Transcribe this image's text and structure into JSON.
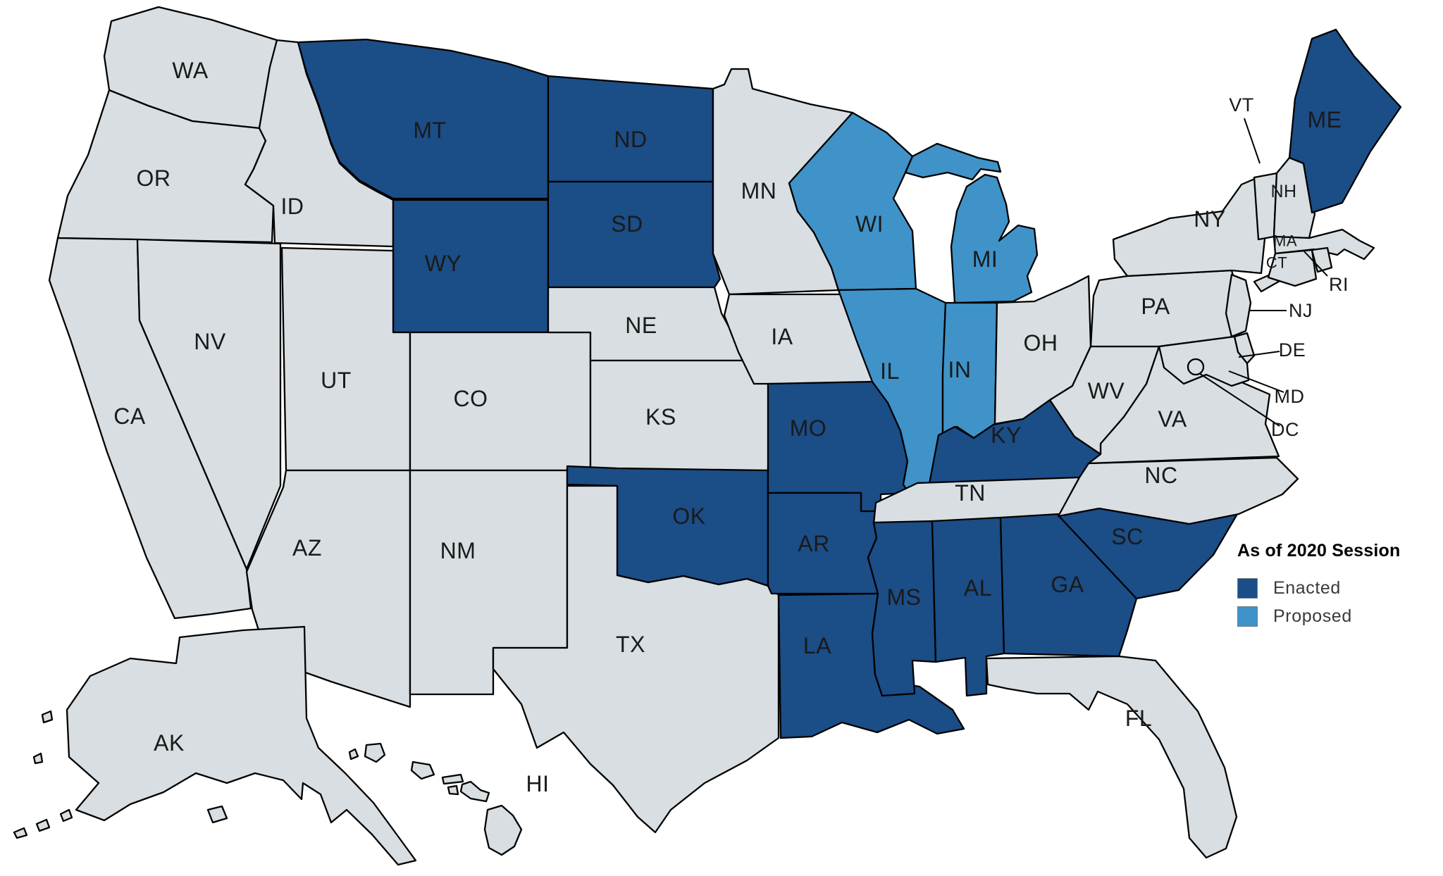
{
  "legend": {
    "title": "As of 2020 Session",
    "items": [
      {
        "id": "enacted",
        "label": "Enacted"
      },
      {
        "id": "proposed",
        "label": "Proposed"
      }
    ]
  },
  "colors": {
    "enacted": "#1B4D87",
    "proposed": "#3F93C8",
    "default": "#D8DEE1",
    "border": "#000000",
    "background": "#FFFFFF",
    "label_text": "#1A1A1A",
    "legend_text": "#3A3A3A"
  },
  "map": {
    "states": [
      {
        "abbr": "WA",
        "status": "default"
      },
      {
        "abbr": "OR",
        "status": "default"
      },
      {
        "abbr": "CA",
        "status": "default"
      },
      {
        "abbr": "NV",
        "status": "default"
      },
      {
        "abbr": "ID",
        "status": "default"
      },
      {
        "abbr": "MT",
        "status": "enacted"
      },
      {
        "abbr": "WY",
        "status": "enacted"
      },
      {
        "abbr": "UT",
        "status": "default"
      },
      {
        "abbr": "CO",
        "status": "default"
      },
      {
        "abbr": "AZ",
        "status": "default"
      },
      {
        "abbr": "NM",
        "status": "default"
      },
      {
        "abbr": "ND",
        "status": "enacted"
      },
      {
        "abbr": "SD",
        "status": "enacted"
      },
      {
        "abbr": "NE",
        "status": "default"
      },
      {
        "abbr": "KS",
        "status": "default"
      },
      {
        "abbr": "OK",
        "status": "enacted"
      },
      {
        "abbr": "TX",
        "status": "default"
      },
      {
        "abbr": "MN",
        "status": "default"
      },
      {
        "abbr": "IA",
        "status": "default"
      },
      {
        "abbr": "MO",
        "status": "enacted"
      },
      {
        "abbr": "AR",
        "status": "enacted"
      },
      {
        "abbr": "LA",
        "status": "enacted"
      },
      {
        "abbr": "WI",
        "status": "proposed"
      },
      {
        "abbr": "IL",
        "status": "proposed"
      },
      {
        "abbr": "MI",
        "status": "proposed"
      },
      {
        "abbr": "IN",
        "status": "proposed"
      },
      {
        "abbr": "OH",
        "status": "default"
      },
      {
        "abbr": "KY",
        "status": "enacted"
      },
      {
        "abbr": "TN",
        "status": "default"
      },
      {
        "abbr": "MS",
        "status": "enacted"
      },
      {
        "abbr": "AL",
        "status": "enacted"
      },
      {
        "abbr": "GA",
        "status": "enacted"
      },
      {
        "abbr": "SC",
        "status": "enacted"
      },
      {
        "abbr": "FL",
        "status": "default"
      },
      {
        "abbr": "NC",
        "status": "default"
      },
      {
        "abbr": "VA",
        "status": "default"
      },
      {
        "abbr": "WV",
        "status": "default"
      },
      {
        "abbr": "PA",
        "status": "default"
      },
      {
        "abbr": "NY",
        "status": "default"
      },
      {
        "abbr": "NJ",
        "status": "default"
      },
      {
        "abbr": "DE",
        "status": "default"
      },
      {
        "abbr": "MD",
        "status": "default"
      },
      {
        "abbr": "DC",
        "status": "default"
      },
      {
        "abbr": "VT",
        "status": "default"
      },
      {
        "abbr": "NH",
        "status": "default"
      },
      {
        "abbr": "MA",
        "status": "default"
      },
      {
        "abbr": "CT",
        "status": "default"
      },
      {
        "abbr": "RI",
        "status": "default"
      },
      {
        "abbr": "ME",
        "status": "enacted"
      },
      {
        "abbr": "AK",
        "status": "default"
      },
      {
        "abbr": "HI",
        "status": "default"
      }
    ]
  }
}
